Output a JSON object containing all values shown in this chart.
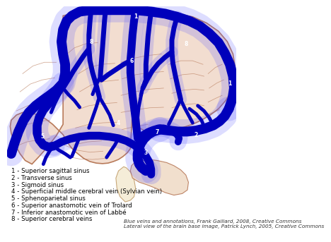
{
  "background_color": "#ffffff",
  "brain_fill": "#f2ddd0",
  "brain_stroke": "#b87a5a",
  "cerebellum_fill": "#f0dcc8",
  "cerebellum_stroke": "#b87a5a",
  "brainstem_fill": "#f5edd8",
  "brainstem_stroke": "#c8a87a",
  "vein_color": "#0000bb",
  "vein_glow_color": "#3333ee",
  "legend_items": [
    "1 - Superior sagittal sinus",
    "2 - Transverse sinus",
    "3 - Sigmoid sinus",
    "4 - Superficial middle cerebral vein (Sylvian vein)",
    "5 - Sphenoparietal sinus",
    "6 - Superior anastomotic vein of Trolard",
    "7 - Inferior anastomotic vein of Labbé",
    "8 - Superior cerebral veins"
  ],
  "credit_line1": "Blue veins and annotations, Frank Gaillard, 2008, Creative Commons",
  "credit_line2": "Lateral view of the brain base image, Patrick Lynch, 2005, Creative Commons",
  "legend_fontsize": 6.2,
  "credit_fontsize": 5.2,
  "label_fontsize": 5.5
}
